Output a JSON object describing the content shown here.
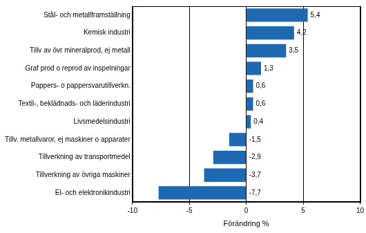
{
  "chart_data": {
    "type": "bar",
    "orientation": "horizontal",
    "categories": [
      "Stål- och metallframställning",
      "Kemisk industri",
      "Tillv av övr mineralprod, ej metall",
      "Graf prod o reprod av inspelningar",
      "Pappers- o pappersvarutillverkn.",
      "Textil-, beklädnads- och läderindustri",
      "Livsmedelsindustri",
      "Tillv. metallvaror, ej maskiner o apparater",
      "Tillverkning av transportmedel",
      "Tillverkning av övriga maskiner",
      "El- och elektronikindustri"
    ],
    "values": [
      5.4,
      4.2,
      3.5,
      1.3,
      0.6,
      0.6,
      0.4,
      -1.5,
      -2.9,
      -3.7,
      -7.7
    ],
    "value_labels": [
      "5,4",
      "4,2",
      "3,5",
      "1,3",
      "0,6",
      "0,6",
      "0,4",
      "-1,5",
      "-2,9",
      "-3,7",
      "-7,7"
    ],
    "color": "#1f69b3",
    "x_label": "Förändring %",
    "xlim": [
      -10,
      10
    ],
    "xticks": [
      -10,
      -5,
      0,
      5,
      10
    ],
    "grid": true,
    "data_labels": true
  }
}
